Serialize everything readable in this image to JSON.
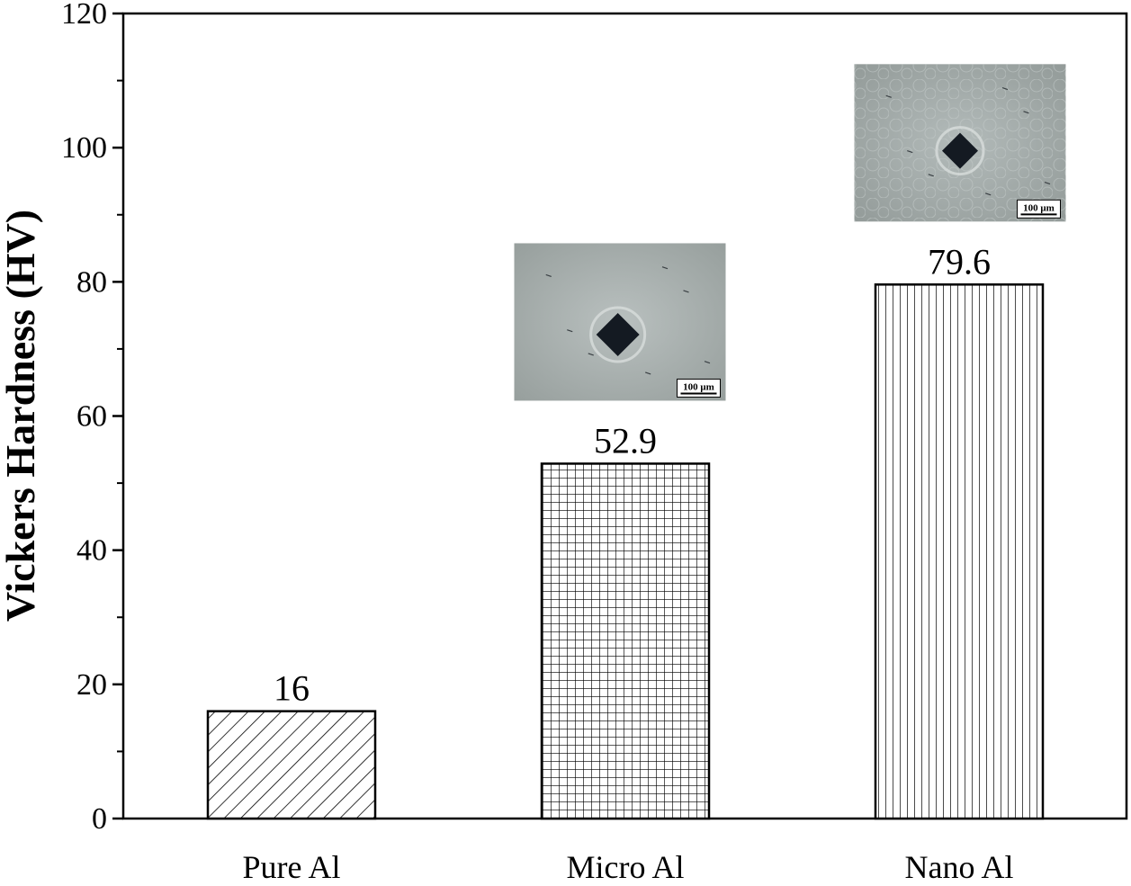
{
  "chart_data": {
    "type": "bar",
    "title": "",
    "xlabel": "",
    "ylabel": "Vickers Hardness (HV)",
    "ylim": [
      0,
      120
    ],
    "yticks": [
      0,
      20,
      40,
      60,
      80,
      100,
      120
    ],
    "categories": [
      "Pure Al",
      "Micro Al",
      "Nano Al"
    ],
    "values": [
      16,
      52.9,
      79.6
    ],
    "data_labels": [
      "16",
      "52.9",
      "79.6"
    ],
    "bar_patterns": [
      "diagonal-hatch",
      "crosshatch-grid",
      "vertical-lines"
    ],
    "grid": false,
    "legend": "none",
    "insets": [
      {
        "category": "Micro Al",
        "description_icon": "micrograph-indent",
        "scale_label": "100 μm"
      },
      {
        "category": "Nano Al",
        "description_icon": "micrograph-indent",
        "scale_label": "100 μm"
      }
    ],
    "colors": {
      "bar_fill": "#ffffff",
      "bar_stroke": "#000000",
      "micrograph_bg": "#a4acaa",
      "indent": "#141a22"
    }
  }
}
